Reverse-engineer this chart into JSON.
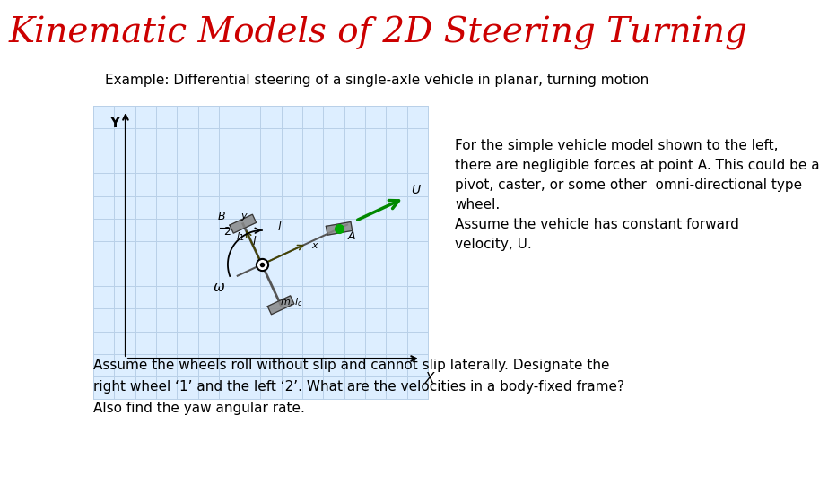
{
  "title": "Kinematic Models of 2D Steering Turning",
  "title_color": "#cc0000",
  "title_fontsize": 28,
  "subtitle": "Example: Differential steering of a single-axle vehicle in planar, turning motion",
  "subtitle_fontsize": 11,
  "right_text_lines": [
    "For the simple vehicle model shown to the left,",
    "there are negligible forces at point A. This could be a",
    "pivot, caster, or some other  omni-directional type",
    "wheel.",
    "Assume the vehicle has constant forward",
    "velocity, U."
  ],
  "bottom_text_line1": "Assume the wheels roll without slip and cannot slip laterally. Designate the",
  "bottom_text_line2": "right wheel ‘1’ and the left ‘2’. What are the velocities in a body-fixed frame?",
  "bottom_text_line3": "Also find the yaw angular rate.",
  "bg_color": "#ffffff",
  "text_color": "#000000",
  "grid_color": "#b8d0e8",
  "grid_bg": "#ddeeff"
}
